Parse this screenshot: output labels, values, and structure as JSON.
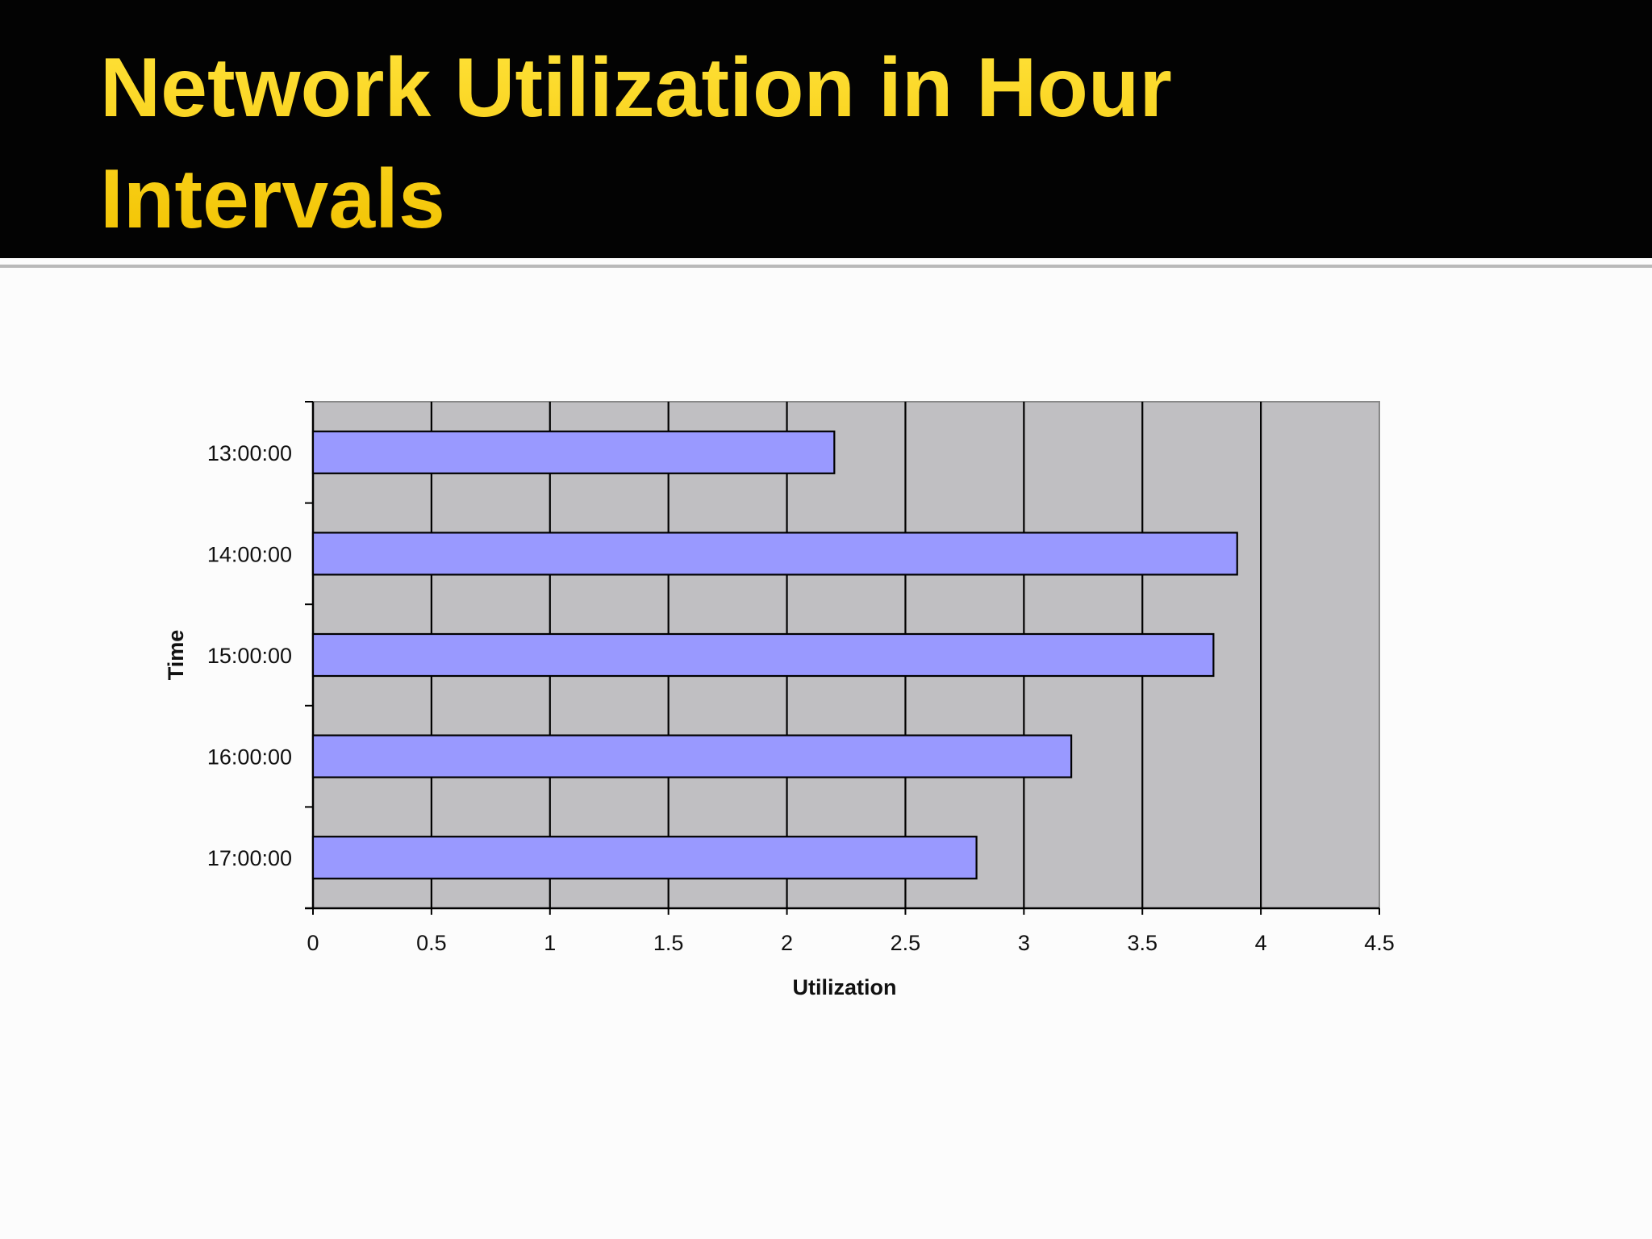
{
  "slide": {
    "title": "Network Utilization in Hour Intervals"
  },
  "colors": {
    "header_bg": "#030303",
    "title": "#f7d000",
    "plot_bg": "#c0bfc2",
    "bar_fill": "#9999ff",
    "bar_stroke": "#000000"
  },
  "chart_data": {
    "type": "bar",
    "orientation": "horizontal",
    "title": "",
    "xlabel": "Utilization",
    "ylabel": "Time",
    "categories": [
      "13:00:00",
      "14:00:00",
      "15:00:00",
      "16:00:00",
      "17:00:00"
    ],
    "values": [
      2.2,
      3.9,
      3.8,
      3.2,
      2.8
    ],
    "xlim": [
      0,
      4.5
    ],
    "xticks": [
      "0",
      "0.5",
      "1",
      "1.5",
      "2",
      "2.5",
      "3",
      "3.5",
      "4",
      "4.5"
    ],
    "grid": "vertical",
    "legend": "none"
  }
}
